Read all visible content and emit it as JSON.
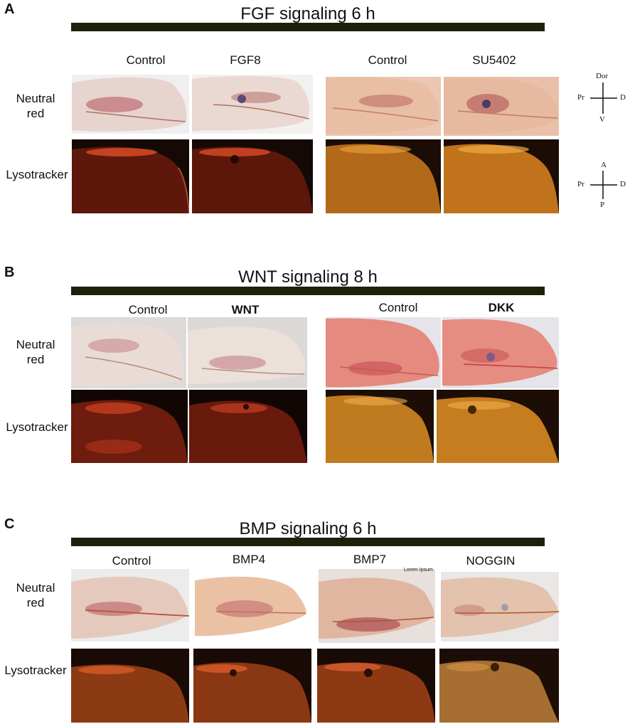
{
  "panels": {
    "A": {
      "letter": "A",
      "title": "FGF signaling 6 h",
      "columns": [
        "Control",
        "FGF8",
        "Control",
        "SU5402"
      ],
      "rows": [
        "Neutral\nred",
        "Lysotracker"
      ]
    },
    "B": {
      "letter": "B",
      "title": "WNT signaling 8 h",
      "columns": [
        "Control",
        "WNT",
        "Control",
        "DKK"
      ],
      "rows": [
        "Neutral\nred",
        "Lysotracker"
      ]
    },
    "C": {
      "letter": "C",
      "title": "BMP signaling 6 h",
      "columns": [
        "Control",
        "BMP4",
        "BMP7",
        "NOGGIN"
      ],
      "rows": [
        "Neutral\nred",
        "Lysotracker"
      ],
      "overlay_text": "Lorem Ipsum"
    }
  },
  "axes": {
    "top": {
      "up": "Dor",
      "left": "Pr",
      "right": "D",
      "down": "V"
    },
    "bottom": {
      "up": "A",
      "left": "Pr",
      "right": "D",
      "down": "P"
    }
  },
  "colors": {
    "bar": "#1b2209",
    "nr_bg_grey": "#dcd7d6",
    "nr_tissue_pale": "#ecd9d2",
    "nr_tissue_orange": "#e9b896",
    "lyso_red": "#8a1f0c",
    "lyso_orange": "#c9771c",
    "lyso_dark": "#140905"
  }
}
